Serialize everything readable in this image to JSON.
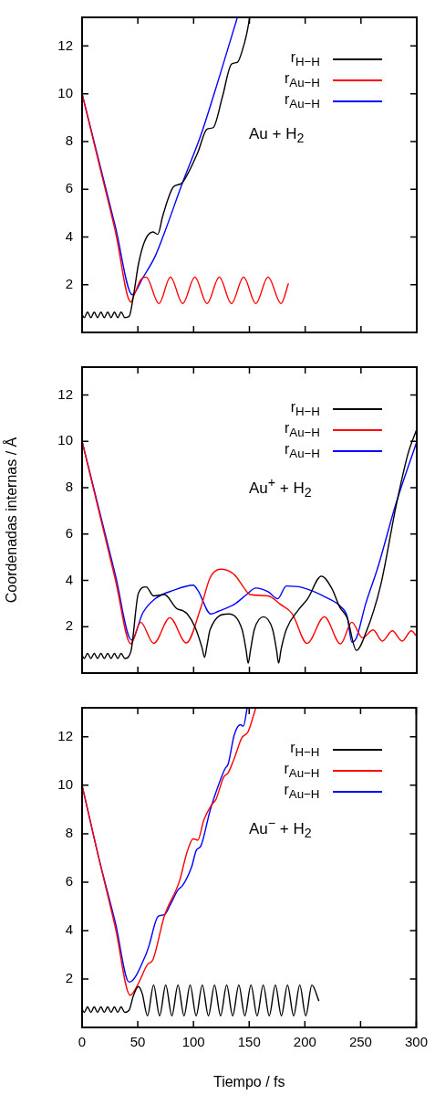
{
  "chart_data": [
    {
      "type": "line",
      "ylim": [
        0,
        13.2
      ],
      "yticks": [
        2,
        4,
        6,
        8,
        10,
        12
      ],
      "xlim": [
        0,
        300
      ],
      "xticks": [
        0,
        50,
        100,
        150,
        200,
        250,
        300
      ],
      "tick_labels": "y",
      "legend": "top right",
      "annotations": [
        "Au + H$_{2}$"
      ],
      "series": [
        {
          "name": "r$_{H−H}$",
          "color": "#000000",
          "x": [
            0,
            2,
            4.9,
            7.9,
            10.9,
            13.9,
            16.9,
            19.9,
            23,
            26,
            29,
            32,
            35,
            38.3,
            42.3,
            46.4,
            50.5,
            56,
            63.4,
            67.8,
            72.4,
            82,
            88.8,
            92.9,
            103.8,
            112,
            117.5,
            125.7,
            133.9,
            139.3,
            143.4,
            147.5,
            150.3
          ],
          "values": [
            0.75,
            0.62,
            0.85,
            0.62,
            0.85,
            0.62,
            0.85,
            0.62,
            0.85,
            0.62,
            0.85,
            0.62,
            0.85,
            0.62,
            0.68,
            1.64,
            2.85,
            3.81,
            4.21,
            4.11,
            4.9,
            6.1,
            6.23,
            6.49,
            7.55,
            8.52,
            8.58,
            9.85,
            11.24,
            11.32,
            11.78,
            12.5,
            13.2
          ]
        },
        {
          "name": "r$_{Au−H}$",
          "color": "#ff0000",
          "x": [
            0,
            15,
            30,
            43.7,
            47,
            52.5,
            57.4,
            68.9,
            79.2,
            90.2,
            101.1,
            112,
            123,
            133.9,
            144.8,
            155.7,
            166.7,
            178.4,
            185
          ],
          "values": [
            10,
            7.1,
            4.2,
            1.27,
            1.6,
            2.2,
            2.32,
            1.21,
            2.32,
            1.21,
            2.32,
            1.21,
            2.32,
            1.21,
            2.32,
            1.21,
            2.32,
            1.21,
            2.06
          ]
        },
        {
          "name": "r$_{Au−H}$",
          "color": "#0000ff",
          "x": [
            0,
            15,
            30,
            45,
            54.6,
            65.6,
            73.8,
            90.2,
            106.6,
            123,
            139.2
          ],
          "values": [
            10,
            7.2,
            4.4,
            1.58,
            2.3,
            3.2,
            4.17,
            6.29,
            8.28,
            10.7,
            13.2
          ]
        }
      ]
    },
    {
      "type": "line",
      "ylim": [
        0,
        13.2
      ],
      "yticks": [
        2,
        4,
        6,
        8,
        10,
        12
      ],
      "xlim": [
        0,
        300
      ],
      "xticks": [
        0,
        50,
        100,
        150,
        200,
        250,
        300
      ],
      "tick_labels": "y",
      "legend": "top right",
      "ylabel": "Coordenadas internas / Å",
      "annotations": [
        "Au$^{+}$ + H$_{2}$"
      ],
      "series": [
        {
          "name": "r$_{H−H}$",
          "color": "#000000",
          "x": [
            0,
            2,
            4.9,
            7.9,
            10.9,
            13.9,
            16.9,
            19.9,
            23,
            26,
            29,
            32,
            35,
            38.3,
            43.7,
            50.5,
            57.4,
            64.2,
            73.8,
            84.7,
            90.2,
            94.3,
            101.1,
            107.5,
            109.8,
            112,
            114.8,
            131.1,
            143.4,
            147,
            148.9,
            151,
            154.4,
            162.6,
            170.8,
            174.3,
            176.2,
            178.3,
            183.1,
            194,
            202.2,
            214.5,
            224,
            230.9,
            237.7,
            245.9,
            254.1,
            267.8,
            281.4,
            292.3,
            300
          ],
          "values": [
            0.75,
            0.63,
            0.85,
            0.63,
            0.85,
            0.63,
            0.85,
            0.63,
            0.85,
            0.63,
            0.85,
            0.63,
            0.85,
            0.63,
            0.92,
            3.45,
            3.72,
            3.33,
            3.39,
            2.79,
            2.69,
            2.55,
            2.0,
            1.1,
            0.68,
            1.2,
            1.88,
            2.55,
            1.88,
            1.0,
            0.43,
            1.0,
            1.88,
            2.43,
            1.88,
            1.0,
            0.43,
            1.0,
            1.88,
            2.73,
            3.21,
            4.18,
            3.64,
            2.85,
            2.37,
            0.98,
            1.7,
            3.82,
            7.2,
            9.49,
            10.52
          ]
        },
        {
          "name": "r$_{Au−H}$",
          "color": "#ff0000",
          "x": [
            0,
            15,
            30,
            43.7,
            52.5,
            64.2,
            78.7,
            93.4,
            106.6,
            114.8,
            124.3,
            136.6,
            144.8,
            150.3,
            166.7,
            177.6,
            188.5,
            201.6,
            217.2,
            231.7,
            241.8,
            251.4,
            260.9,
            269.1,
            278.1,
            286.9,
            295.1,
            300
          ],
          "values": [
            10,
            7.0,
            4.0,
            1.26,
            2.19,
            1.28,
            2.39,
            1.3,
            2.85,
            4.12,
            4.48,
            4.24,
            3.7,
            3.39,
            3.33,
            2.97,
            2.55,
            1.28,
            2.43,
            1.26,
            2.19,
            1.52,
            1.86,
            1.38,
            1.82,
            1.38,
            1.82,
            1.58
          ]
        },
        {
          "name": "r$_{Au−H}$",
          "color": "#0000ff",
          "x": [
            0,
            15,
            30,
            44.3,
            54.6,
            65.6,
            82,
            99.7,
            103.8,
            115.4,
            122.3,
            136.6,
            147.5,
            155.7,
            166.7,
            175.4,
            183.1,
            196.7,
            218.6,
            232.2,
            237.7,
            241.8,
            245.9,
            254.1,
            265,
            281.4,
            300
          ],
          "values": [
            10,
            7.1,
            4.2,
            1.43,
            2.61,
            3.21,
            3.57,
            3.79,
            3.57,
            2.55,
            2.67,
            2.97,
            3.39,
            3.67,
            3.51,
            3.21,
            3.76,
            3.7,
            3.27,
            2.85,
            2.43,
            1.34,
            1.52,
            2.97,
            4.54,
            7.32,
            9.98
          ]
        }
      ]
    },
    {
      "type": "line",
      "ylim": [
        0,
        13.2
      ],
      "yticks": [
        2,
        4,
        6,
        8,
        10,
        12
      ],
      "xlim": [
        0,
        300
      ],
      "xticks": [
        0,
        50,
        100,
        150,
        200,
        250,
        300
      ],
      "legend": "top right",
      "xlabel": "Tiempo / fs",
      "annotations": [
        "Au$^{−}$ + H$_{2}$"
      ],
      "series": [
        {
          "name": "r$_{H−H}$",
          "color": "#000000",
          "x": [
            0,
            2,
            4.9,
            7.9,
            10.9,
            13.9,
            16.9,
            19.9,
            23,
            26,
            29,
            32,
            35,
            38.3,
            42.3,
            46,
            50.5,
            54,
            58.7,
            64.2,
            69.6,
            75.1,
            80.6,
            86.1,
            91.5,
            97,
            102.4,
            107.9,
            113.4,
            118.9,
            124.3,
            129.8,
            135.2,
            140.7,
            146.1,
            151.6,
            157.1,
            162.6,
            168,
            173.5,
            178.9,
            184.4,
            189.9,
            195.4,
            200.8,
            206.3,
            212.6
          ],
          "values": [
            0.75,
            0.62,
            0.85,
            0.62,
            0.85,
            0.62,
            0.85,
            0.62,
            0.85,
            0.62,
            0.85,
            0.62,
            0.85,
            0.62,
            0.72,
            1.3,
            1.69,
            1.4,
            0.48,
            1.75,
            0.48,
            1.75,
            0.48,
            1.75,
            0.48,
            1.75,
            0.48,
            1.75,
            0.48,
            1.75,
            0.48,
            1.75,
            0.48,
            1.75,
            0.48,
            1.75,
            0.48,
            1.75,
            0.48,
            1.75,
            0.48,
            1.75,
            0.48,
            1.75,
            0.48,
            1.75,
            1.09
          ]
        },
        {
          "name": "r$_{Au−H}$",
          "color": "#ff0000",
          "x": [
            0,
            15,
            30,
            43.2,
            50.5,
            58.7,
            63.4,
            73.8,
            87.4,
            94.3,
            99.7,
            103.8,
            109.3,
            116.1,
            120.2,
            127,
            131.1,
            136.6,
            143.4,
            148.9,
            155.7
          ],
          "values": [
            10,
            7.0,
            4.1,
            1.33,
            1.81,
            2.6,
            2.78,
            4.59,
            6.04,
            7.25,
            7.79,
            7.73,
            8.57,
            9.18,
            9.42,
            10.33,
            10.51,
            11.11,
            11.96,
            12.2,
            13.16
          ]
        },
        {
          "name": "r$_{Au−H}$",
          "color": "#0000ff",
          "x": [
            0,
            15,
            30,
            42.3,
            57.4,
            60.1,
            68.3,
            73.8,
            79.2,
            86.1,
            90.2,
            98.4,
            102.5,
            106.6,
            114.8,
            118.9,
            128.4,
            131.1,
            136.6,
            142.1,
            144.8,
            148.2
          ],
          "values": [
            10,
            7.0,
            4.3,
            1.87,
            3.02,
            3.38,
            4.59,
            4.65,
            5.07,
            5.68,
            5.86,
            6.64,
            7.31,
            7.49,
            8.94,
            9.54,
            10.69,
            10.87,
            12.08,
            12.5,
            12.44,
            13.2
          ]
        }
      ]
    }
  ]
}
